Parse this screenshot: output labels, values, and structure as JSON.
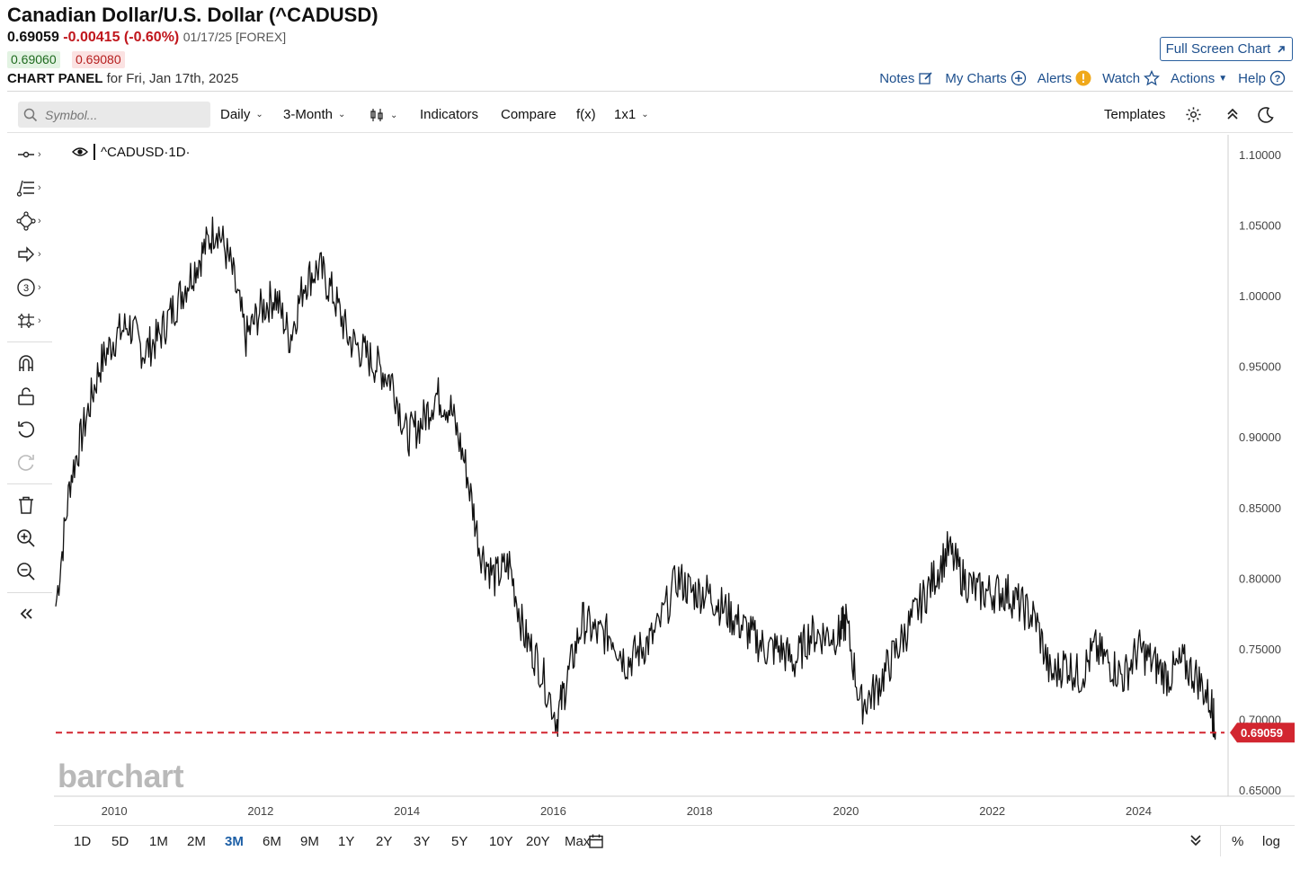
{
  "header": {
    "title": "Canadian Dollar/U.S. Dollar (^CADUSD)",
    "last": "0.69059",
    "change": "-0.00415 (-0.60%)",
    "meta": "01/17/25 [FOREX]",
    "bid": "0.69060",
    "ask": "0.69080",
    "panel_label": "CHART PANEL",
    "panel_date": "for Fri, Jan 17th, 2025",
    "fullscreen": "Full Screen Chart"
  },
  "topnav": {
    "notes": "Notes",
    "my_charts": "My Charts",
    "alerts": "Alerts",
    "watch": "Watch",
    "actions": "Actions",
    "help": "Help"
  },
  "toolbar": {
    "search_placeholder": "Symbol...",
    "interval": "Daily",
    "range": "3-Month",
    "indicators": "Indicators",
    "compare": "Compare",
    "fx": "f(x)",
    "layout": "1x1",
    "templates": "Templates"
  },
  "legend": {
    "symbol": "^CADUSD",
    "period": "·1D·"
  },
  "brand": "barchart",
  "ranges": [
    "1D",
    "5D",
    "1M",
    "2M",
    "3M",
    "6M",
    "9M",
    "1Y",
    "2Y",
    "3Y",
    "5Y",
    "10Y",
    "20Y",
    "Max"
  ],
  "active_range": "3M",
  "bottom_right": {
    "percent": "%",
    "log": "log"
  },
  "colors": {
    "line": "#111111",
    "last_price": "#d22630",
    "accent": "#1d4f8d"
  },
  "chart_data": {
    "type": "line",
    "series": [
      {
        "x": [
          2009.2,
          2009.4,
          2009.6,
          2009.8,
          2010.0,
          2010.2,
          2010.4,
          2010.6,
          2010.8,
          2011.0,
          2011.2,
          2011.4,
          2011.6,
          2011.8,
          2012.0,
          2012.2,
          2012.4,
          2012.6,
          2012.8,
          2013.0,
          2013.2,
          2013.4,
          2013.6,
          2013.8,
          2014.0,
          2014.2,
          2014.4,
          2014.6,
          2014.8,
          2015.0,
          2015.2,
          2015.4,
          2015.6,
          2015.8,
          2016.05,
          2016.2,
          2016.4,
          2016.6,
          2016.8,
          2017.0,
          2017.2,
          2017.4,
          2017.7,
          2017.9,
          2018.1,
          2018.3,
          2018.5,
          2018.7,
          2018.9,
          2019.1,
          2019.3,
          2019.5,
          2019.7,
          2019.9,
          2020.0,
          2020.2,
          2020.4,
          2020.6,
          2020.8,
          2021.0,
          2021.2,
          2021.4,
          2021.6,
          2021.8,
          2022.0,
          2022.2,
          2022.4,
          2022.6,
          2022.8,
          2023.0,
          2023.2,
          2023.4,
          2023.6,
          2023.8,
          2024.0,
          2024.2,
          2024.4,
          2024.6,
          2024.8,
          2025.0,
          2025.05
        ],
        "y": [
          0.78,
          0.87,
          0.91,
          0.95,
          0.97,
          0.98,
          0.96,
          0.97,
          0.99,
          1.01,
          1.03,
          1.05,
          1.02,
          0.97,
          0.99,
          1.0,
          0.97,
          1.01,
          1.02,
          1.0,
          0.97,
          0.96,
          0.95,
          0.94,
          0.9,
          0.91,
          0.93,
          0.92,
          0.88,
          0.82,
          0.8,
          0.81,
          0.76,
          0.74,
          0.7,
          0.73,
          0.77,
          0.76,
          0.76,
          0.74,
          0.75,
          0.76,
          0.8,
          0.79,
          0.79,
          0.78,
          0.77,
          0.76,
          0.75,
          0.75,
          0.74,
          0.76,
          0.76,
          0.76,
          0.77,
          0.71,
          0.72,
          0.74,
          0.76,
          0.78,
          0.8,
          0.82,
          0.8,
          0.79,
          0.79,
          0.79,
          0.78,
          0.77,
          0.73,
          0.74,
          0.73,
          0.75,
          0.74,
          0.73,
          0.75,
          0.74,
          0.73,
          0.74,
          0.73,
          0.71,
          0.69059
        ]
      }
    ],
    "last_value": 0.69059,
    "ylim": [
      0.65,
      1.1
    ],
    "y_ticks": [
      "1.10000",
      "1.05000",
      "1.00000",
      "0.95000",
      "0.90000",
      "0.85000",
      "0.80000",
      "0.75000",
      "0.70000",
      "0.65000"
    ],
    "x_ticks": [
      "2010",
      "2012",
      "2014",
      "2016",
      "2018",
      "2020",
      "2022",
      "2024"
    ],
    "xlim": [
      2009.2,
      2025.1
    ],
    "grid": false
  }
}
